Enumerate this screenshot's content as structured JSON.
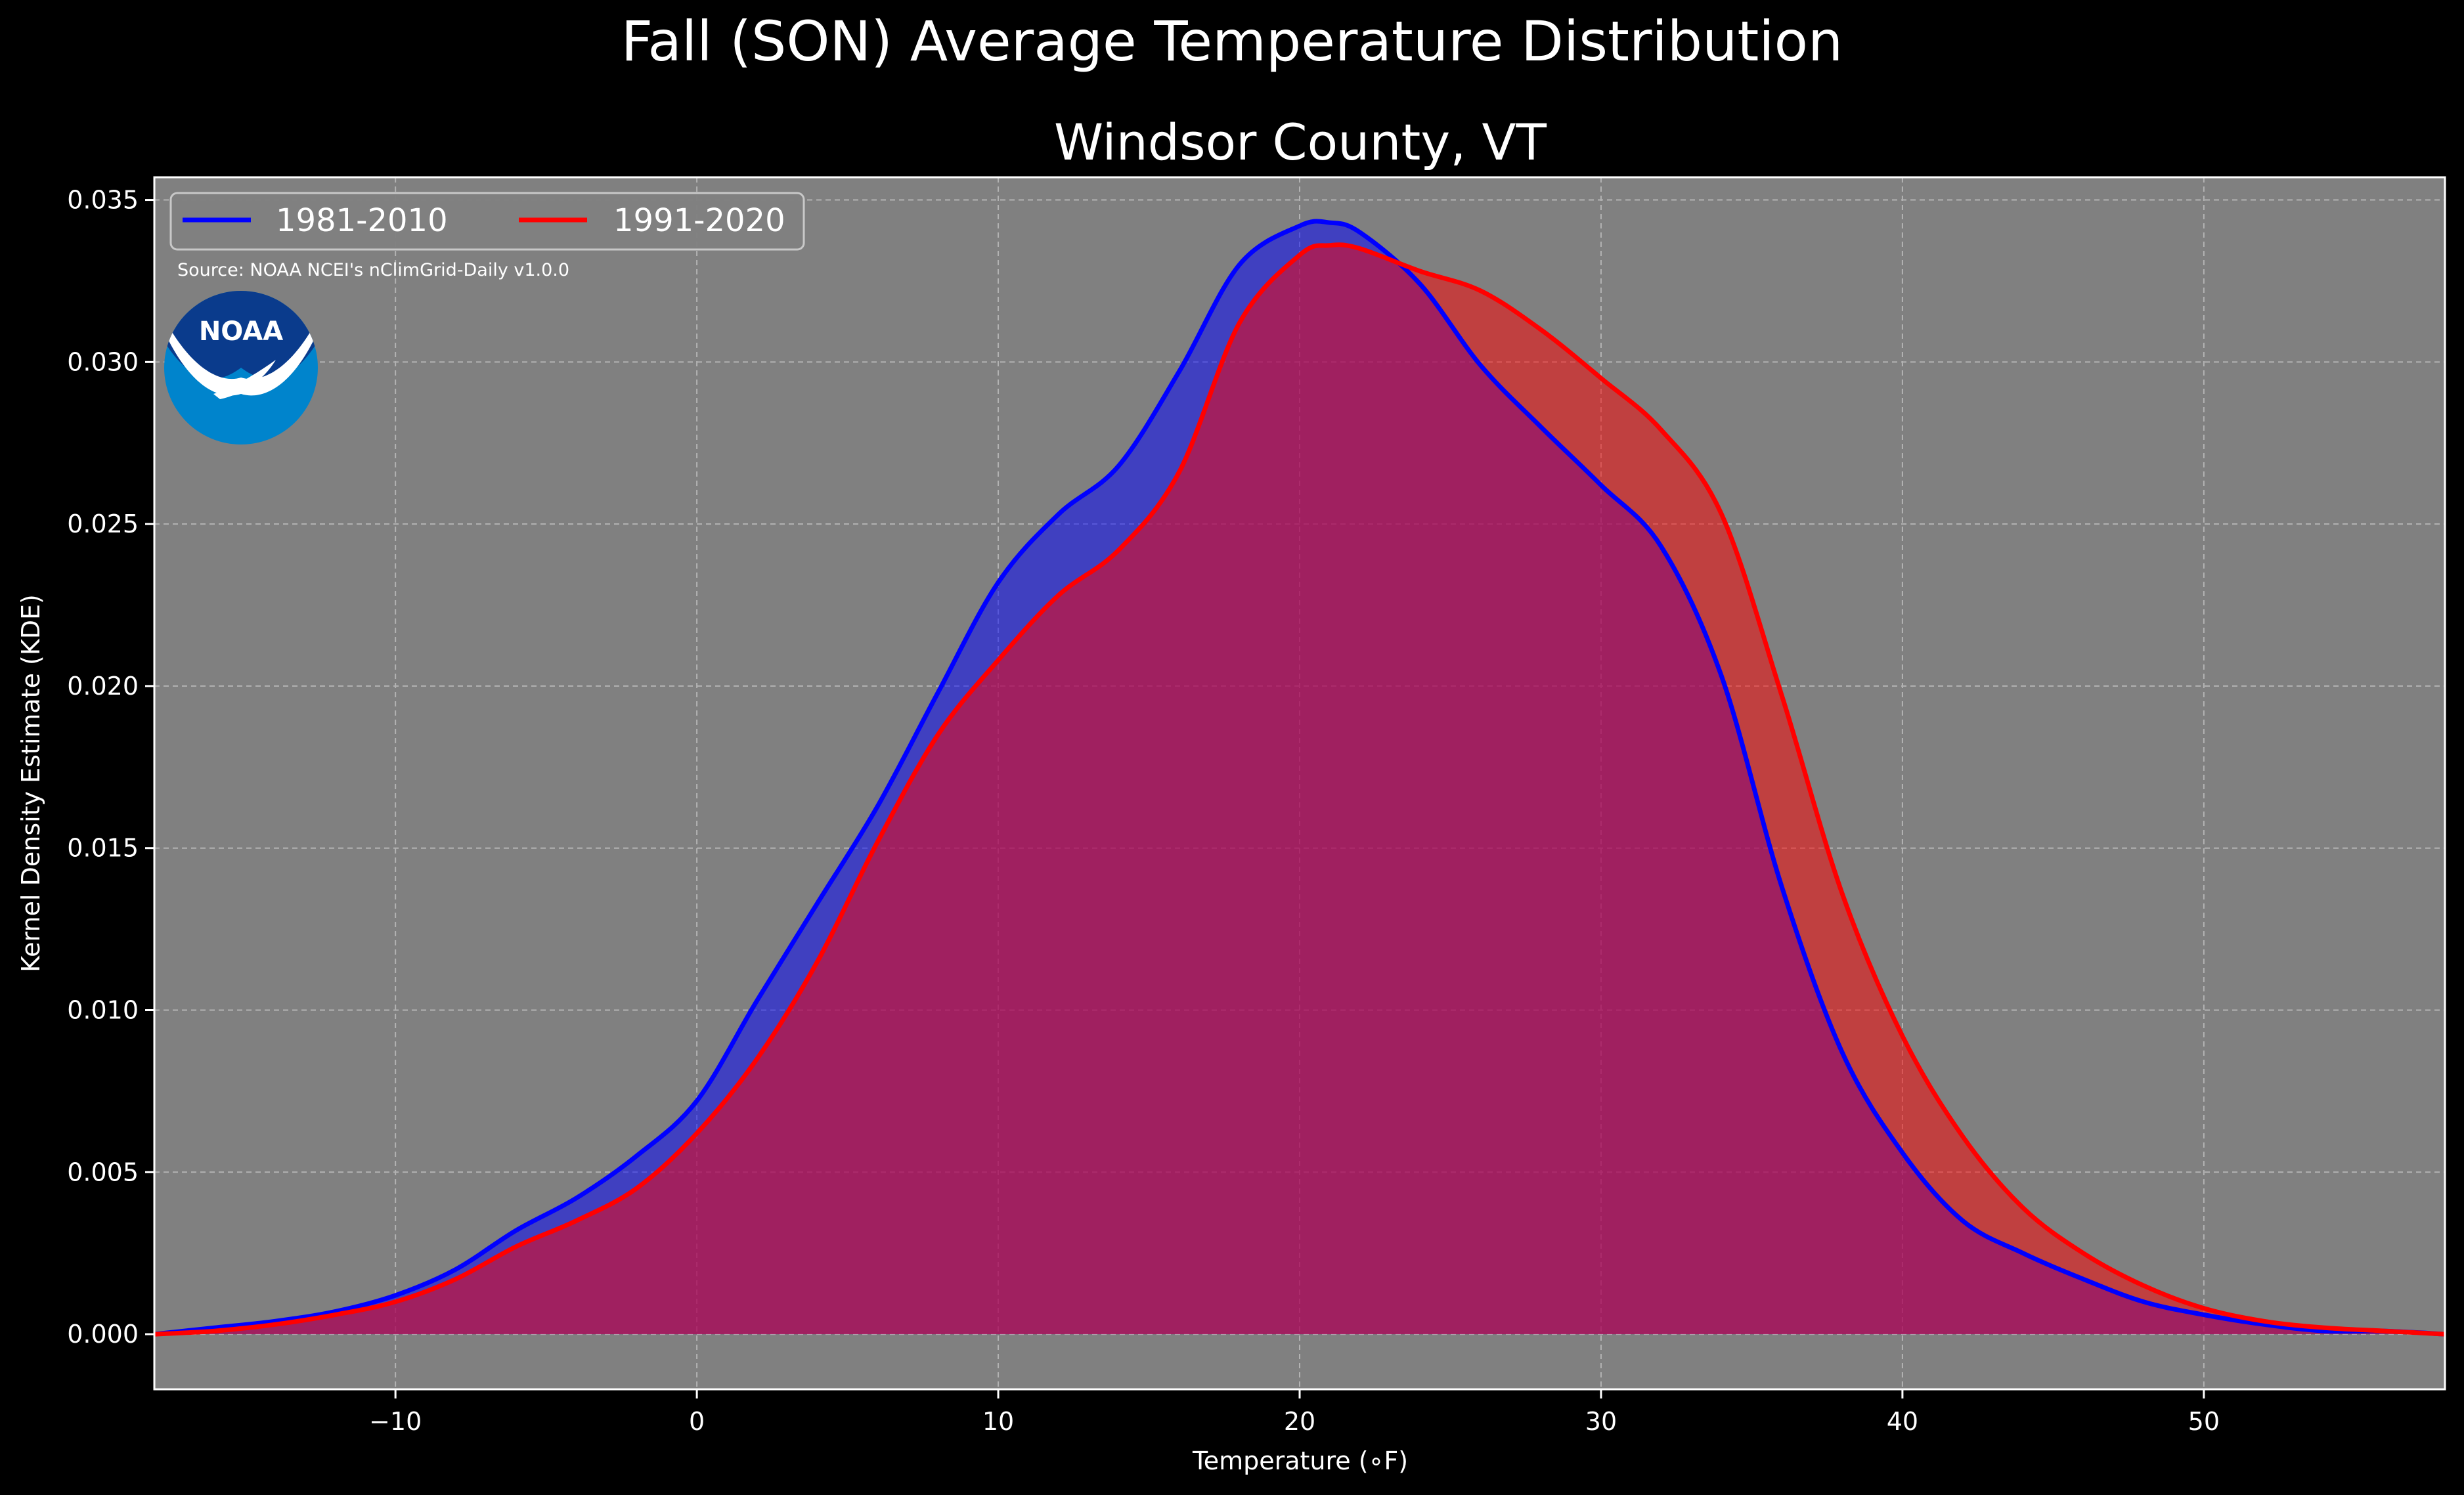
{
  "chart_data": {
    "type": "area",
    "suptitle": "Fall (SON) Average Temperature Distribution",
    "title": "Windsor County, VT",
    "xlabel": "Temperature (∘F)",
    "ylabel": "Kernel Density Estimate (KDE)",
    "xlim": [
      -18,
      58
    ],
    "ylim": [
      -0.0017,
      0.0357
    ],
    "xticks": [
      -10,
      0,
      10,
      20,
      30,
      40,
      50
    ],
    "xtick_labels": [
      "−10",
      "0",
      "10",
      "20",
      "30",
      "40",
      "50"
    ],
    "yticks": [
      0.0,
      0.005,
      0.01,
      0.015,
      0.02,
      0.025,
      0.03,
      0.035
    ],
    "ytick_labels": [
      "0.000",
      "0.005",
      "0.010",
      "0.015",
      "0.020",
      "0.025",
      "0.030",
      "0.035"
    ],
    "grid": true,
    "legend_position": "top-left",
    "source": "Source: NOAA NCEI's nClimGrid-Daily v1.0.0",
    "logo_text": "NOAA",
    "background_color": "#000000",
    "axes_color": "#808080",
    "series": [
      {
        "name": "1981-2010",
        "color": "#0000ff",
        "fill": "#0000ff",
        "x": [
          -18,
          -16,
          -14,
          -12,
          -10,
          -8,
          -6,
          -4,
          -2,
          0,
          2,
          4,
          6,
          8,
          10,
          12,
          14,
          16,
          18,
          20,
          21,
          22,
          24,
          26,
          28,
          30,
          32,
          34,
          36,
          38,
          40,
          42,
          44,
          46,
          48,
          50,
          52,
          54,
          56,
          58
        ],
        "y": [
          0.0,
          0.0002,
          0.0004,
          0.0007,
          0.0012,
          0.002,
          0.0032,
          0.0042,
          0.0055,
          0.0072,
          0.0103,
          0.0133,
          0.0163,
          0.0198,
          0.0232,
          0.0253,
          0.0268,
          0.0297,
          0.033,
          0.0342,
          0.0343,
          0.034,
          0.0324,
          0.0299,
          0.028,
          0.0262,
          0.0243,
          0.0203,
          0.0138,
          0.0087,
          0.0056,
          0.0035,
          0.0025,
          0.0017,
          0.001,
          0.0006,
          0.0003,
          0.0001,
          0.0001,
          0.0
        ]
      },
      {
        "name": "1991-2020",
        "color": "#ff0000",
        "fill": "#ff0000",
        "x": [
          -18,
          -16,
          -14,
          -12,
          -10,
          -8,
          -6,
          -4,
          -2,
          0,
          2,
          4,
          6,
          8,
          10,
          12,
          14,
          16,
          18,
          20,
          21,
          22,
          24,
          26,
          28,
          30,
          32,
          34,
          36,
          38,
          40,
          42,
          44,
          46,
          48,
          50,
          52,
          54,
          56,
          58
        ],
        "y": [
          0.0,
          0.0001,
          0.0003,
          0.0006,
          0.001,
          0.0017,
          0.0027,
          0.0035,
          0.0045,
          0.0062,
          0.0085,
          0.0115,
          0.0152,
          0.0185,
          0.0208,
          0.0228,
          0.0242,
          0.0266,
          0.0312,
          0.0333,
          0.0336,
          0.0335,
          0.0328,
          0.0322,
          0.031,
          0.0295,
          0.0279,
          0.0253,
          0.0197,
          0.0136,
          0.0092,
          0.0061,
          0.0039,
          0.0025,
          0.0015,
          0.0008,
          0.0004,
          0.0002,
          0.0001,
          0.0
        ]
      }
    ]
  }
}
